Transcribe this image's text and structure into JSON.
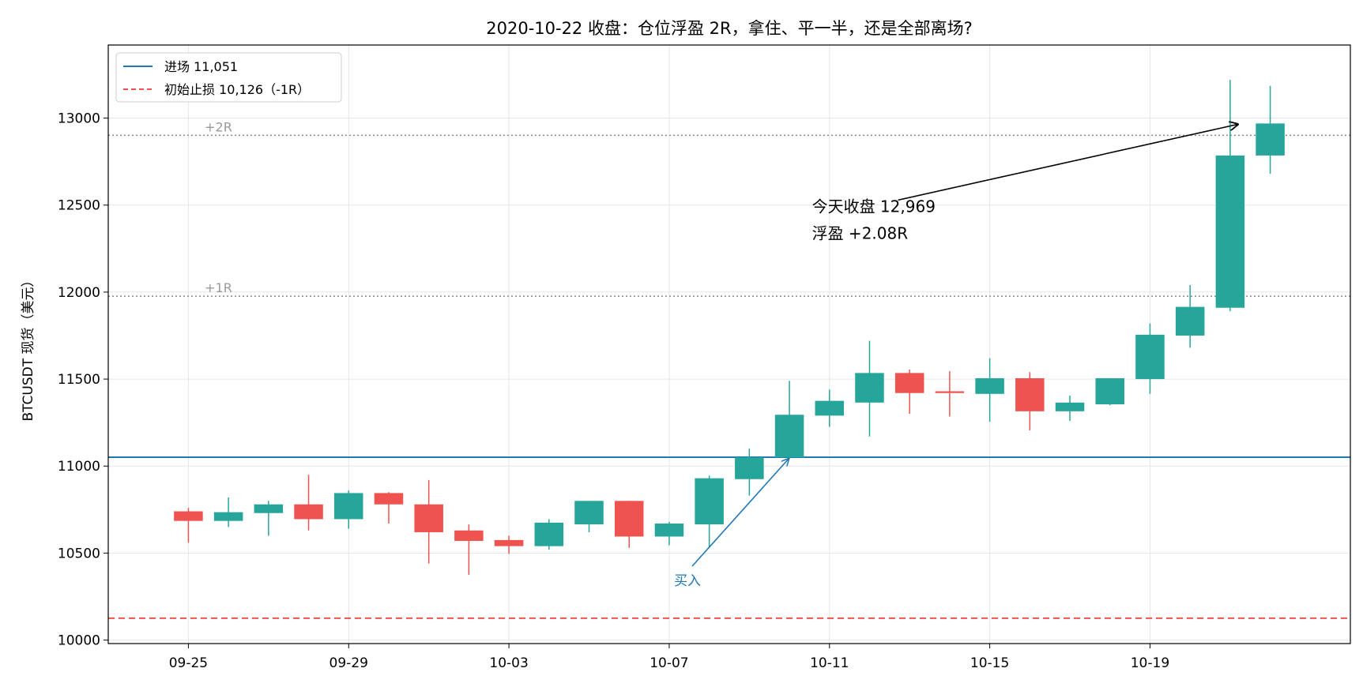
{
  "chart_data": {
    "type": "candlestick",
    "title": "2020-10-22 收盘：仓位浮盈 2R，拿住、平一半，还是全部离场?",
    "xlabel": "",
    "ylabel": "BTCUSDT 现货（美元）",
    "ylim": [
      9980,
      13420
    ],
    "yticks": [
      "10000",
      "10500",
      "11000",
      "11500",
      "12000",
      "12500",
      "13000"
    ],
    "xticks": [
      {
        "label": "09-25",
        "date": "2020-09-25"
      },
      {
        "label": "09-29",
        "date": "2020-09-29"
      },
      {
        "label": "10-03",
        "date": "2020-10-03"
      },
      {
        "label": "10-07",
        "date": "2020-10-07"
      },
      {
        "label": "10-11",
        "date": "2020-10-11"
      },
      {
        "label": "10-15",
        "date": "2020-10-15"
      },
      {
        "label": "10-19",
        "date": "2020-10-19"
      }
    ],
    "xlim": [
      "2020-09-23",
      "2020-10-24"
    ],
    "grid": true,
    "legend_position": "upper-left",
    "legend": [
      {
        "label": "进场 11,051",
        "color": "#1f77b4",
        "style": "solid"
      },
      {
        "label": "初始止损 10,126（-1R）",
        "color": "#f0534f",
        "style": "dashed"
      }
    ],
    "hlines": [
      {
        "value": 11051,
        "color": "#1f77b4",
        "style": "solid"
      },
      {
        "value": 10126,
        "color": "#f0534f",
        "style": "dashed"
      },
      {
        "value": 11976,
        "color": "#888888",
        "style": "dotted",
        "label": "+1R"
      },
      {
        "value": 12901,
        "color": "#888888",
        "style": "dotted",
        "label": "+2R"
      }
    ],
    "colors": {
      "up": "#26a69a",
      "down": "#ef5350"
    },
    "candles": [
      {
        "date": "2020-09-25",
        "open": 10740,
        "high": 10760,
        "low": 10560,
        "close": 10685
      },
      {
        "date": "2020-09-26",
        "open": 10685,
        "high": 10820,
        "low": 10650,
        "close": 10735
      },
      {
        "date": "2020-09-27",
        "open": 10730,
        "high": 10800,
        "low": 10600,
        "close": 10780
      },
      {
        "date": "2020-09-28",
        "open": 10780,
        "high": 10950,
        "low": 10630,
        "close": 10695
      },
      {
        "date": "2020-09-29",
        "open": 10695,
        "high": 10860,
        "low": 10640,
        "close": 10845
      },
      {
        "date": "2020-09-30",
        "open": 10845,
        "high": 10850,
        "low": 10670,
        "close": 10780
      },
      {
        "date": "2020-10-01",
        "open": 10780,
        "high": 10920,
        "low": 10440,
        "close": 10620
      },
      {
        "date": "2020-10-02",
        "open": 10630,
        "high": 10665,
        "low": 10375,
        "close": 10570
      },
      {
        "date": "2020-10-03",
        "open": 10575,
        "high": 10600,
        "low": 10495,
        "close": 10540
      },
      {
        "date": "2020-10-04",
        "open": 10540,
        "high": 10695,
        "low": 10520,
        "close": 10675
      },
      {
        "date": "2020-10-05",
        "open": 10665,
        "high": 10800,
        "low": 10620,
        "close": 10800
      },
      {
        "date": "2020-10-06",
        "open": 10800,
        "high": 10800,
        "low": 10530,
        "close": 10595
      },
      {
        "date": "2020-10-07",
        "open": 10595,
        "high": 10680,
        "low": 10545,
        "close": 10670
      },
      {
        "date": "2020-10-08",
        "open": 10665,
        "high": 10945,
        "low": 10530,
        "close": 10930
      },
      {
        "date": "2020-10-09",
        "open": 10925,
        "high": 11100,
        "low": 10830,
        "close": 11050
      },
      {
        "date": "2020-10-10",
        "open": 11050,
        "high": 11490,
        "low": 11040,
        "close": 11295
      },
      {
        "date": "2020-10-11",
        "open": 11290,
        "high": 11440,
        "low": 11225,
        "close": 11375
      },
      {
        "date": "2020-10-12",
        "open": 11365,
        "high": 11720,
        "low": 11170,
        "close": 11535
      },
      {
        "date": "2020-10-13",
        "open": 11535,
        "high": 11555,
        "low": 11300,
        "close": 11420
      },
      {
        "date": "2020-10-14",
        "open": 11430,
        "high": 11545,
        "low": 11285,
        "close": 11420
      },
      {
        "date": "2020-10-15",
        "open": 11415,
        "high": 11620,
        "low": 11255,
        "close": 11505
      },
      {
        "date": "2020-10-16",
        "open": 11505,
        "high": 11540,
        "low": 11205,
        "close": 11315
      },
      {
        "date": "2020-10-17",
        "open": 11315,
        "high": 11405,
        "low": 11260,
        "close": 11365
      },
      {
        "date": "2020-10-18",
        "open": 11355,
        "high": 11505,
        "low": 11350,
        "close": 11505
      },
      {
        "date": "2020-10-19",
        "open": 11500,
        "high": 11820,
        "low": 11415,
        "close": 11755
      },
      {
        "date": "2020-10-20",
        "open": 11750,
        "high": 12040,
        "low": 11680,
        "close": 11915
      },
      {
        "date": "2020-10-21",
        "open": 11910,
        "high": 13220,
        "low": 11890,
        "close": 12785
      },
      {
        "date": "2020-10-22",
        "open": 12785,
        "high": 13185,
        "low": 12680,
        "close": 12969
      }
    ],
    "annotations": [
      {
        "text": "买入",
        "color": "#1f77b4",
        "target_date": "2020-10-10",
        "target_value": 11051
      },
      {
        "text": "今天收盘 12,969",
        "text2": "浮盈 +2.08R",
        "color": "#000000",
        "target_date": "2020-10-22",
        "target_value": 12969
      }
    ]
  }
}
